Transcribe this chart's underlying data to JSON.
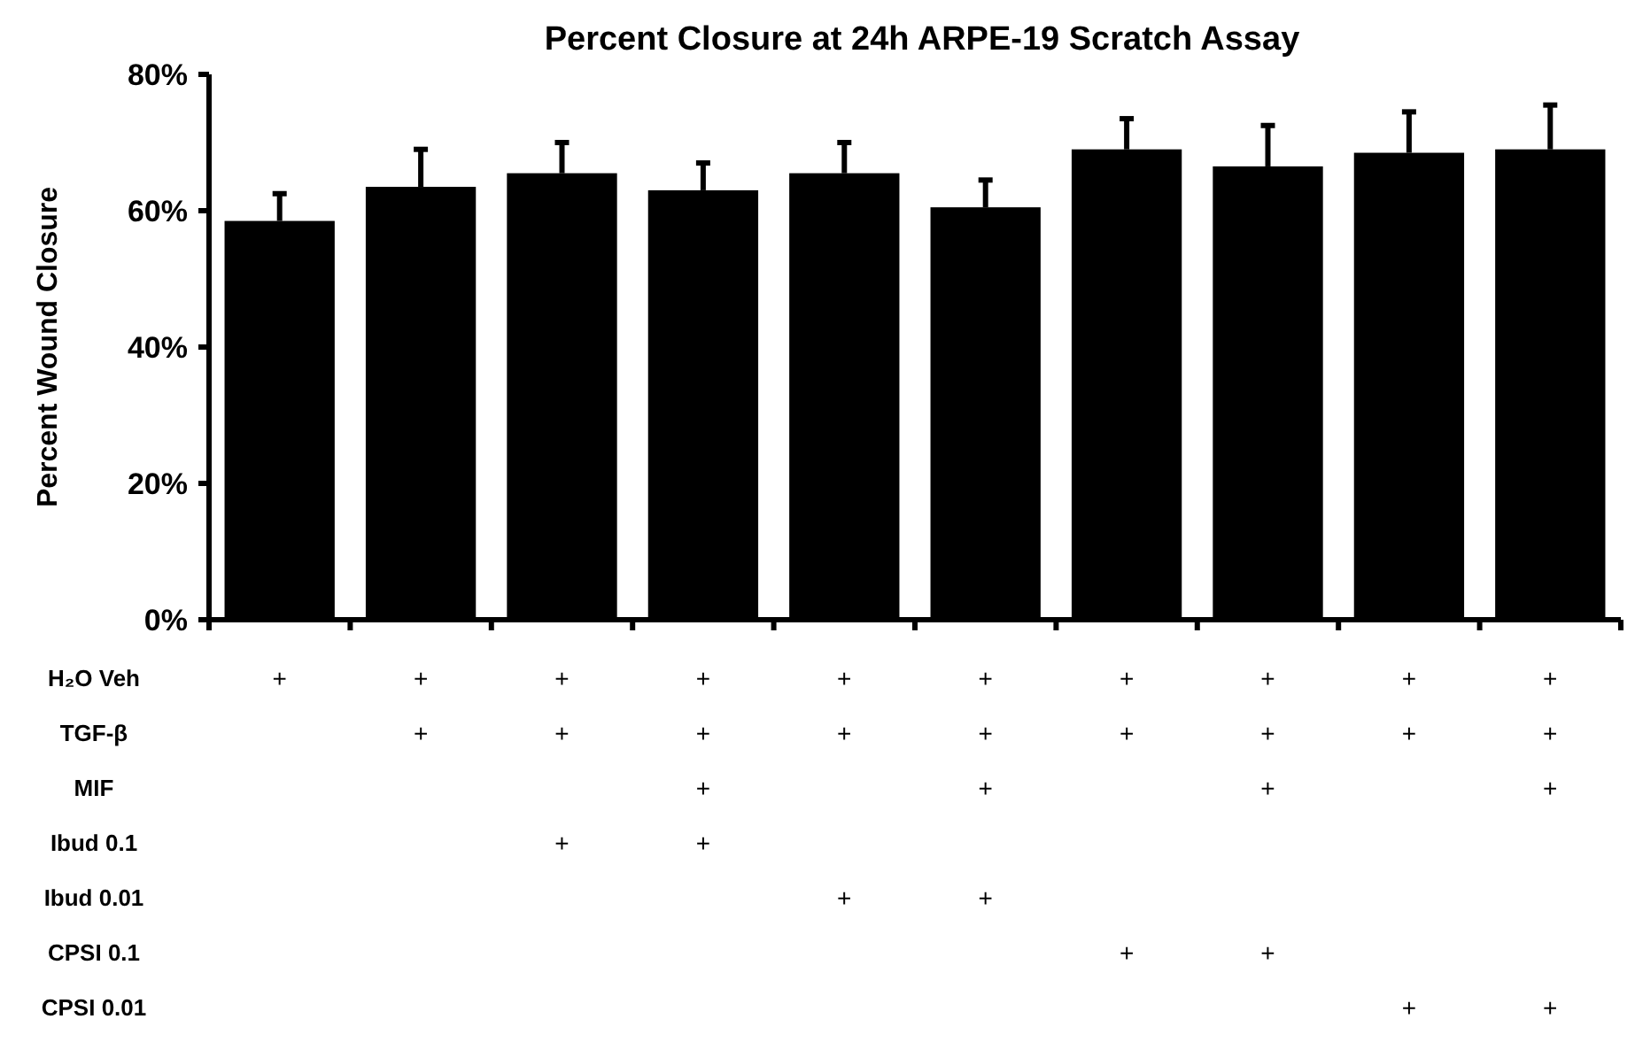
{
  "chart_data": [
    {
      "type": "bar",
      "title": "Percent Closure at 24h ARPE-19 Scratch Assay",
      "ylabel": "Percent Wound Closure",
      "categories": [
        null,
        null,
        null,
        null,
        null,
        null,
        null,
        null,
        null,
        null
      ],
      "values": [
        58.5,
        63.5,
        65.5,
        63,
        65.5,
        60.5,
        69,
        66.5,
        68.5,
        69
      ],
      "errors": [
        [
          58.5,
          62.5
        ],
        [
          63.5,
          69
        ],
        [
          65.5,
          70
        ],
        [
          63,
          67
        ],
        [
          65.5,
          70
        ],
        [
          60.5,
          64.5
        ],
        [
          69,
          73.5
        ],
        [
          66.5,
          72.5
        ],
        [
          68.5,
          74.5
        ],
        [
          69,
          75.5
        ]
      ],
      "color": "#000000",
      "ylim": [
        0,
        80
      ],
      "yticks": [
        {
          "value": 0,
          "label": "0%"
        },
        {
          "value": 20,
          "label": "20%"
        },
        {
          "value": 40,
          "label": "40%"
        },
        {
          "value": 60,
          "label": "60%"
        },
        {
          "value": 80,
          "label": "80%"
        }
      ],
      "grid": false
    },
    {
      "type": "other",
      "y_categories": [
        "H₂O Veh",
        "TGF-β",
        "MIF",
        "Ibud 0.1",
        "Ibud 0.01",
        "CPSI 0.1",
        "CPSI 0.01"
      ],
      "cell_labels": [
        [
          "+",
          "+",
          "+",
          "+",
          "+",
          "+",
          "+",
          "+",
          "+",
          "+"
        ],
        [
          null,
          "+",
          "+",
          "+",
          "+",
          "+",
          "+",
          "+",
          "+",
          "+"
        ],
        [
          null,
          null,
          null,
          "+",
          null,
          "+",
          null,
          "+",
          null,
          "+"
        ],
        [
          null,
          null,
          "+",
          "+",
          null,
          null,
          null,
          null,
          null,
          null
        ],
        [
          null,
          null,
          null,
          null,
          "+",
          "+",
          null,
          null,
          null,
          null
        ],
        [
          null,
          null,
          null,
          null,
          null,
          null,
          "+",
          "+",
          null,
          null
        ],
        [
          null,
          null,
          null,
          null,
          null,
          null,
          null,
          null,
          "+",
          "+"
        ]
      ]
    }
  ]
}
